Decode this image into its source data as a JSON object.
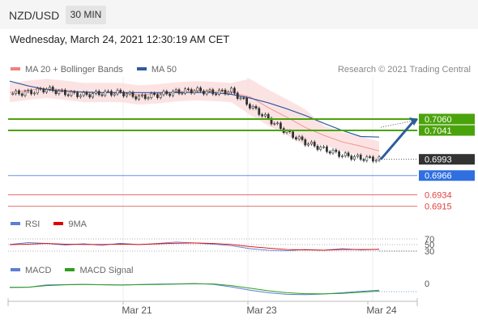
{
  "header": {
    "pair": "NZD/USD",
    "timeframe": "30 MIN"
  },
  "datetime": "Wednesday, March 24, 2021 12:30:19 AM CET",
  "copyright": "Research © 2021 Trading Central",
  "legends": {
    "price": [
      {
        "label": "MA 20 + Bollinger Bands",
        "color": "#f08080"
      },
      {
        "label": "MA 50",
        "color": "#2e5d9f"
      }
    ],
    "rsi": [
      {
        "label": "RSI",
        "color": "#5b7fd6"
      },
      {
        "label": "9MA",
        "color": "#e00000"
      }
    ],
    "macd": [
      {
        "label": "MACD",
        "color": "#5b7fd6"
      },
      {
        "label": "MACD Signal",
        "color": "#2e9e1e"
      }
    ]
  },
  "chart_data": [
    {
      "type": "candlestick",
      "panel": "price",
      "x_labels": [
        "Mar 21",
        "Mar 23",
        "Mar 24"
      ],
      "ylim": [
        0.6905,
        0.713
      ],
      "series": [
        {
          "name": "MA 20 + Bollinger Bands",
          "color": "#f08080",
          "values": [
            0.7104,
            0.7108,
            0.7111,
            0.7108,
            0.7104,
            0.7104,
            0.7104,
            0.71,
            0.7102,
            0.7105,
            0.7107,
            0.7106,
            0.7104,
            0.7097,
            0.7079,
            0.7063,
            0.7046,
            0.7033,
            0.7022,
            0.7015,
            0.7007
          ]
        },
        {
          "name": "MA 50",
          "color": "#2e5d9f",
          "values": [
            0.7123,
            0.7115,
            0.7109,
            0.7106,
            0.7105,
            0.7104,
            0.7104,
            0.7104,
            0.7104,
            0.7104,
            0.7104,
            0.7104,
            0.7101,
            0.7095,
            0.7087,
            0.7077,
            0.7066,
            0.7053,
            0.7041,
            0.7031,
            0.703
          ]
        }
      ],
      "close": [
        0.7102,
        0.7104,
        0.711,
        0.7103,
        0.71,
        0.7103,
        0.7104,
        0.7096,
        0.71,
        0.7105,
        0.7108,
        0.7104,
        0.7107,
        0.7082,
        0.706,
        0.7038,
        0.7021,
        0.701,
        0.7,
        0.6995,
        0.6993
      ],
      "last_price": {
        "label": "0.6993",
        "value": 0.6993,
        "color": "#333333"
      },
      "levels": [
        {
          "label": "0.7060",
          "value": 0.706,
          "color": "#4ba30b"
        },
        {
          "label": "0.7041",
          "value": 0.7041,
          "color": "#4ba30b"
        },
        {
          "label": "0.6966",
          "value": 0.6966,
          "color": "#2f6fe0"
        },
        {
          "label": "0.6934",
          "value": 0.6934,
          "color": "#e04040"
        },
        {
          "label": "0.6915",
          "value": 0.6915,
          "color": "#e04040"
        }
      ]
    },
    {
      "type": "line",
      "panel": "RSI",
      "ylim": [
        0,
        100
      ],
      "ticks": [
        "70",
        "50",
        "30"
      ],
      "series": [
        {
          "name": "RSI",
          "color": "#5b7fd6",
          "values": [
            52,
            58,
            55,
            50,
            54,
            49,
            56,
            51,
            55,
            60,
            57,
            53,
            48,
            38,
            33,
            31,
            35,
            33,
            38,
            34,
            36
          ]
        },
        {
          "name": "9MA",
          "color": "#e00000",
          "values": [
            51,
            53,
            55,
            53,
            52,
            52,
            53,
            52,
            54,
            56,
            57,
            55,
            52,
            45,
            40,
            35,
            34,
            33,
            35,
            35,
            36
          ]
        }
      ]
    },
    {
      "type": "line",
      "panel": "MACD",
      "ticks": [
        "0"
      ],
      "series": [
        {
          "name": "MACD",
          "color": "#5b7fd6",
          "values": [
            0.0,
            0.05,
            0.4,
            0.45,
            0.5,
            0.42,
            0.38,
            0.48,
            0.52,
            0.56,
            0.62,
            0.5,
            0.1,
            -0.4,
            -0.8,
            -1.05,
            -1.1,
            -1.0,
            -0.8,
            -0.6,
            -0.4
          ]
        },
        {
          "name": "MACD Signal",
          "color": "#2e9e1e",
          "values": [
            0.05,
            0.05,
            0.3,
            0.42,
            0.46,
            0.44,
            0.4,
            0.44,
            0.48,
            0.53,
            0.58,
            0.56,
            0.3,
            -0.1,
            -0.5,
            -0.8,
            -0.95,
            -0.98,
            -0.9,
            -0.72,
            -0.55
          ]
        }
      ]
    }
  ]
}
